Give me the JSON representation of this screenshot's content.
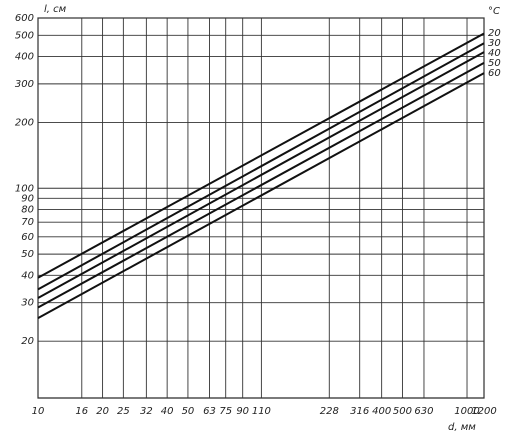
{
  "chart_data": {
    "type": "line",
    "y_label": "l, см",
    "x_label": "d, мм",
    "legend_title": "°C",
    "x": [
      10,
      1200
    ],
    "series": [
      {
        "name": "20",
        "color": "#111",
        "values": [
          39,
          510
        ]
      },
      {
        "name": "30",
        "color": "#111",
        "values": [
          34.5,
          460
        ]
      },
      {
        "name": "40",
        "color": "#111",
        "values": [
          31.5,
          419
        ]
      },
      {
        "name": "50",
        "color": "#111",
        "values": [
          28.5,
          374
        ]
      },
      {
        "name": "60",
        "color": "#111",
        "values": [
          25.5,
          336
        ]
      }
    ],
    "xlog": true,
    "ylog": true,
    "grid": true,
    "xlim": [
      10,
      1200
    ],
    "ylim": [
      11,
      600
    ],
    "xticks": [
      10,
      16,
      20,
      25,
      32,
      40,
      50,
      63,
      75,
      90,
      110,
      228,
      316,
      400,
      500,
      630,
      1000,
      1200
    ],
    "yticks": [
      20,
      30,
      40,
      50,
      60,
      70,
      80,
      90,
      100,
      200,
      300,
      400,
      500,
      600
    ]
  }
}
